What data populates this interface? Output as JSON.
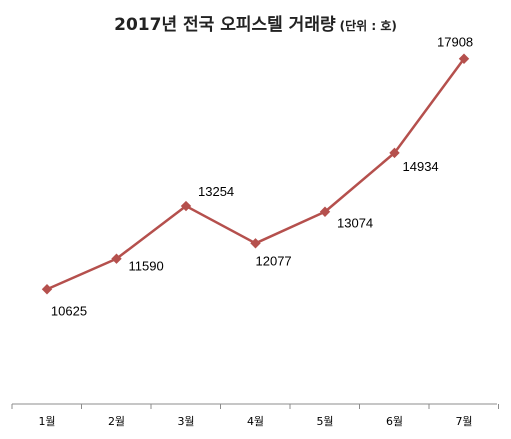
{
  "chart_data": {
    "type": "line",
    "title": "2017년 전국 오피스텔 거래량",
    "unit_note": "(단위 : 호)",
    "categories": [
      "1월",
      "2월",
      "3월",
      "4월",
      "5월",
      "6월",
      "7월"
    ],
    "series": [
      {
        "values": [
          10625,
          11590,
          13254,
          12077,
          13074,
          14934,
          17908
        ]
      }
    ],
    "ylim": [
      7000,
      18500
    ],
    "grid": false,
    "legend": "none",
    "line_color": "#b5504d",
    "marker": "diamond"
  }
}
